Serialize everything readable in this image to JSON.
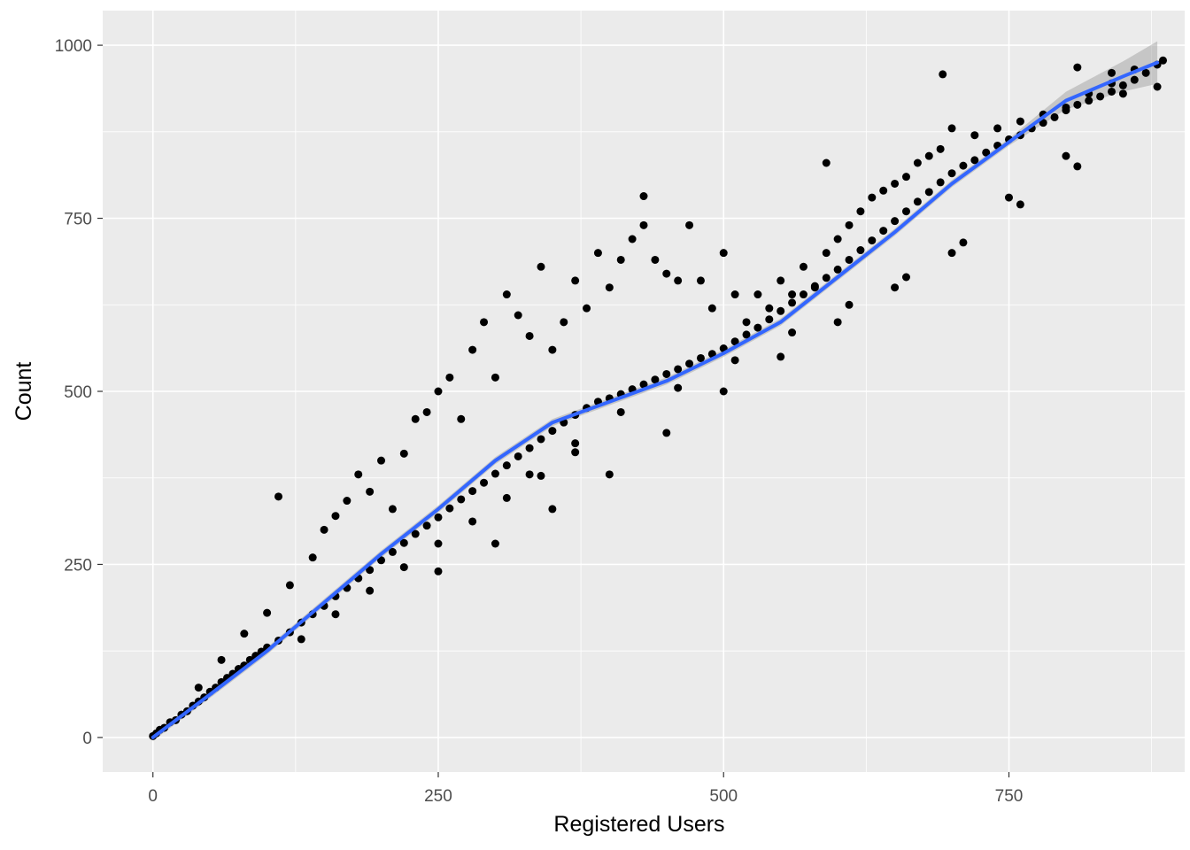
{
  "chart_data": {
    "type": "scatter",
    "title": "",
    "xlabel": "Registered Users",
    "ylabel": "Count",
    "xlim": [
      -44,
      904
    ],
    "ylim": [
      -50,
      1050
    ],
    "xticks": [
      0,
      250,
      500,
      750
    ],
    "xtick_labels": [
      "0",
      "250",
      "500",
      "750"
    ],
    "yticks": [
      0,
      250,
      500,
      750,
      1000
    ],
    "ytick_labels": [
      "0",
      "250",
      "500",
      "750",
      "1000"
    ],
    "grid": true,
    "legend": "none",
    "colors": {
      "panel_background": "#ebebeb",
      "grid": "#ffffff",
      "points": "#000000",
      "smooth_line": "#3366ff",
      "confidence_band": "#999999"
    },
    "series": [
      {
        "kind": "points",
        "values": [
          [
            0,
            2
          ],
          [
            3,
            6
          ],
          [
            6,
            11
          ],
          [
            10,
            14
          ],
          [
            15,
            22
          ],
          [
            20,
            25
          ],
          [
            25,
            33
          ],
          [
            30,
            38
          ],
          [
            35,
            46
          ],
          [
            40,
            52
          ],
          [
            45,
            58
          ],
          [
            50,
            66
          ],
          [
            55,
            72
          ],
          [
            60,
            80
          ],
          [
            65,
            86
          ],
          [
            70,
            92
          ],
          [
            75,
            99
          ],
          [
            80,
            104
          ],
          [
            85,
            112
          ],
          [
            90,
            118
          ],
          [
            95,
            124
          ],
          [
            100,
            130
          ],
          [
            110,
            140
          ],
          [
            120,
            152
          ],
          [
            130,
            166
          ],
          [
            140,
            178
          ],
          [
            150,
            190
          ],
          [
            160,
            204
          ],
          [
            170,
            216
          ],
          [
            180,
            230
          ],
          [
            190,
            242
          ],
          [
            200,
            256
          ],
          [
            210,
            268
          ],
          [
            220,
            281
          ],
          [
            230,
            294
          ],
          [
            240,
            306
          ],
          [
            250,
            318
          ],
          [
            260,
            331
          ],
          [
            270,
            344
          ],
          [
            280,
            356
          ],
          [
            290,
            368
          ],
          [
            300,
            381
          ],
          [
            310,
            393
          ],
          [
            320,
            406
          ],
          [
            330,
            418
          ],
          [
            340,
            431
          ],
          [
            350,
            443
          ],
          [
            360,
            455
          ],
          [
            370,
            466
          ],
          [
            380,
            476
          ],
          [
            390,
            485
          ],
          [
            400,
            490
          ],
          [
            410,
            496
          ],
          [
            420,
            503
          ],
          [
            430,
            510
          ],
          [
            440,
            517
          ],
          [
            450,
            525
          ],
          [
            460,
            532
          ],
          [
            470,
            540
          ],
          [
            480,
            548
          ],
          [
            490,
            554
          ],
          [
            500,
            562
          ],
          [
            510,
            572
          ],
          [
            520,
            582
          ],
          [
            530,
            592
          ],
          [
            540,
            604
          ],
          [
            550,
            616
          ],
          [
            560,
            628
          ],
          [
            570,
            640
          ],
          [
            580,
            652
          ],
          [
            590,
            664
          ],
          [
            600,
            676
          ],
          [
            610,
            690
          ],
          [
            620,
            704
          ],
          [
            630,
            718
          ],
          [
            640,
            732
          ],
          [
            650,
            746
          ],
          [
            660,
            760
          ],
          [
            670,
            774
          ],
          [
            680,
            788
          ],
          [
            690,
            802
          ],
          [
            700,
            815
          ],
          [
            710,
            826
          ],
          [
            720,
            834
          ],
          [
            730,
            845
          ],
          [
            740,
            855
          ],
          [
            750,
            864
          ],
          [
            760,
            870
          ],
          [
            770,
            880
          ],
          [
            780,
            888
          ],
          [
            790,
            896
          ],
          [
            800,
            906
          ],
          [
            810,
            914
          ],
          [
            820,
            920
          ],
          [
            830,
            926
          ],
          [
            840,
            933
          ],
          [
            850,
            942
          ],
          [
            860,
            950
          ],
          [
            870,
            960
          ],
          [
            880,
            972
          ],
          [
            885,
            978
          ],
          [
            40,
            72
          ],
          [
            60,
            112
          ],
          [
            80,
            150
          ],
          [
            100,
            180
          ],
          [
            110,
            348
          ],
          [
            120,
            220
          ],
          [
            140,
            260
          ],
          [
            150,
            300
          ],
          [
            160,
            320
          ],
          [
            170,
            342
          ],
          [
            180,
            380
          ],
          [
            190,
            355
          ],
          [
            200,
            400
          ],
          [
            210,
            330
          ],
          [
            220,
            410
          ],
          [
            230,
            460
          ],
          [
            240,
            470
          ],
          [
            250,
            500
          ],
          [
            260,
            520
          ],
          [
            270,
            460
          ],
          [
            280,
            560
          ],
          [
            290,
            600
          ],
          [
            300,
            520
          ],
          [
            310,
            640
          ],
          [
            320,
            610
          ],
          [
            330,
            580
          ],
          [
            340,
            680
          ],
          [
            350,
            560
          ],
          [
            360,
            600
          ],
          [
            370,
            660
          ],
          [
            380,
            620
          ],
          [
            390,
            700
          ],
          [
            400,
            650
          ],
          [
            410,
            690
          ],
          [
            420,
            720
          ],
          [
            430,
            740
          ],
          [
            440,
            690
          ],
          [
            450,
            670
          ],
          [
            460,
            660
          ],
          [
            470,
            740
          ],
          [
            480,
            660
          ],
          [
            490,
            620
          ],
          [
            500,
            700
          ],
          [
            510,
            640
          ],
          [
            520,
            600
          ],
          [
            530,
            640
          ],
          [
            540,
            620
          ],
          [
            550,
            660
          ],
          [
            560,
            640
          ],
          [
            570,
            680
          ],
          [
            580,
            650
          ],
          [
            590,
            700
          ],
          [
            600,
            720
          ],
          [
            610,
            740
          ],
          [
            620,
            760
          ],
          [
            630,
            780
          ],
          [
            640,
            790
          ],
          [
            650,
            800
          ],
          [
            660,
            810
          ],
          [
            670,
            830
          ],
          [
            680,
            840
          ],
          [
            690,
            850
          ],
          [
            692,
            958
          ],
          [
            700,
            880
          ],
          [
            720,
            870
          ],
          [
            740,
            880
          ],
          [
            760,
            890
          ],
          [
            780,
            900
          ],
          [
            800,
            910
          ],
          [
            820,
            930
          ],
          [
            840,
            945
          ],
          [
            860,
            965
          ],
          [
            250,
            240
          ],
          [
            300,
            280
          ],
          [
            350,
            330
          ],
          [
            400,
            380
          ],
          [
            450,
            440
          ],
          [
            500,
            500
          ],
          [
            550,
            550
          ],
          [
            600,
            600
          ],
          [
            650,
            650
          ],
          [
            700,
            700
          ],
          [
            750,
            780
          ],
          [
            800,
            840
          ],
          [
            850,
            930
          ],
          [
            880,
            940
          ],
          [
            430,
            782
          ],
          [
            590,
            830
          ],
          [
            810,
            968
          ],
          [
            840,
            960
          ],
          [
            330,
            380
          ],
          [
            370,
            425
          ],
          [
            410,
            470
          ],
          [
            460,
            505
          ],
          [
            510,
            545
          ],
          [
            560,
            585
          ],
          [
            610,
            625
          ],
          [
            660,
            665
          ],
          [
            710,
            715
          ],
          [
            760,
            770
          ],
          [
            810,
            825
          ],
          [
            130,
            142
          ],
          [
            160,
            178
          ],
          [
            190,
            212
          ],
          [
            220,
            246
          ],
          [
            250,
            280
          ],
          [
            280,
            312
          ],
          [
            310,
            346
          ],
          [
            340,
            378
          ],
          [
            370,
            412
          ]
        ]
      },
      {
        "kind": "smooth",
        "color": "#3366ff",
        "values": [
          [
            0,
            0
          ],
          [
            50,
            62
          ],
          [
            100,
            125
          ],
          [
            150,
            195
          ],
          [
            200,
            265
          ],
          [
            250,
            330
          ],
          [
            300,
            400
          ],
          [
            350,
            455
          ],
          [
            400,
            485
          ],
          [
            450,
            515
          ],
          [
            500,
            555
          ],
          [
            550,
            600
          ],
          [
            600,
            665
          ],
          [
            650,
            730
          ],
          [
            700,
            800
          ],
          [
            750,
            860
          ],
          [
            800,
            920
          ],
          [
            850,
            955
          ],
          [
            880,
            975
          ]
        ]
      }
    ]
  }
}
